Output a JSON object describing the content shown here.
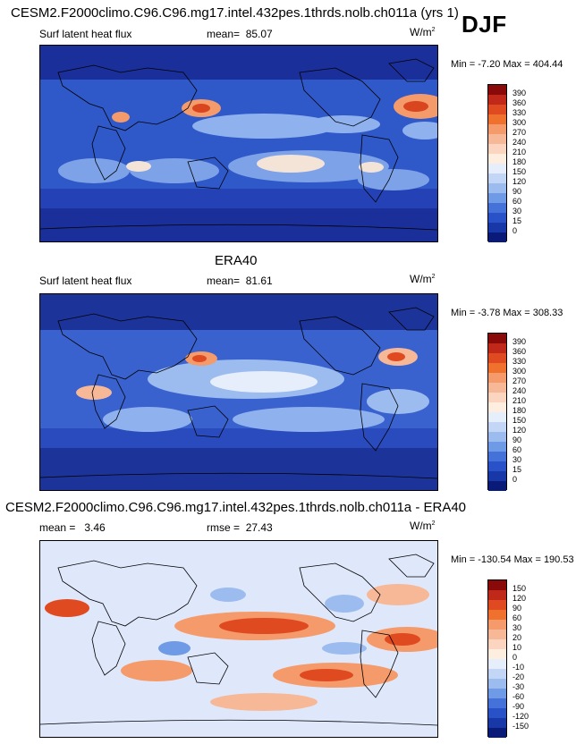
{
  "header": {
    "season": "DJF"
  },
  "panels": [
    {
      "title": "CESM2.F2000climo.C96.C96.mg17.intel.432pes.1thrds.nolb.ch011a (yrs 1)",
      "left_label": "Surf latent heat flux",
      "mean_label": "mean=",
      "mean_value": "85.07",
      "units": "W/m",
      "units_sup": "2",
      "minmax": "Min =  -7.20 Max = 404.44",
      "colorbar": {
        "ticks": [
          "390",
          "360",
          "330",
          "300",
          "270",
          "240",
          "210",
          "180",
          "150",
          "120",
          "90",
          "60",
          "30",
          "15",
          "0"
        ],
        "colors": [
          "#8a0a0a",
          "#c0281a",
          "#e04a20",
          "#f0702e",
          "#f59a6a",
          "#f7b898",
          "#fbd5c0",
          "#fdeee0",
          "#e6eefb",
          "#c3d6f6",
          "#9cbcf0",
          "#6f9ae6",
          "#4472d8",
          "#2a52c8",
          "#1838a8",
          "#0a1a78"
        ]
      }
    },
    {
      "title": "ERA40",
      "left_label": "Surf latent heat flux",
      "mean_label": "mean=",
      "mean_value": "81.61",
      "units": "W/m",
      "units_sup": "2",
      "minmax": "Min =  -3.78 Max = 308.33",
      "colorbar": {
        "ticks": [
          "390",
          "360",
          "330",
          "300",
          "270",
          "240",
          "210",
          "180",
          "150",
          "120",
          "90",
          "60",
          "30",
          "15",
          "0"
        ],
        "colors": [
          "#8a0a0a",
          "#c0281a",
          "#e04a20",
          "#f0702e",
          "#f59a6a",
          "#f7b898",
          "#fbd5c0",
          "#fdeee0",
          "#e6eefb",
          "#c3d6f6",
          "#9cbcf0",
          "#6f9ae6",
          "#4472d8",
          "#2a52c8",
          "#1838a8",
          "#0a1a78"
        ]
      }
    },
    {
      "title": "CESM2.F2000climo.C96.C96.mg17.intel.432pes.1thrds.nolb.ch011a - ERA40",
      "left_label": "mean =",
      "left_value": "3.46",
      "mean_label": "rmse =",
      "mean_value": "27.43",
      "units": "W/m",
      "units_sup": "2",
      "minmax": "Min = -130.54 Max = 190.53",
      "colorbar": {
        "ticks": [
          "150",
          "120",
          "90",
          "60",
          "30",
          "20",
          "10",
          "0",
          "-10",
          "-20",
          "-30",
          "-60",
          "-90",
          "-120",
          "-150"
        ],
        "colors": [
          "#8a0a0a",
          "#c0281a",
          "#e04a20",
          "#f0702e",
          "#f59a6a",
          "#f7b898",
          "#fbd5c0",
          "#fdeee0",
          "#e6eefb",
          "#c3d6f6",
          "#9cbcf0",
          "#6f9ae6",
          "#4472d8",
          "#2a52c8",
          "#1838a8",
          "#0a1a78"
        ]
      }
    }
  ],
  "colors": {
    "deep_blue": "#1a34a6",
    "mid_blue": "#3d64d0",
    "light_blue": "#8fb2ee",
    "pale": "#f4e9e0",
    "orange": "#ef7a4e",
    "red": "#d8451f",
    "diff_bg": "#dfe8fa"
  }
}
